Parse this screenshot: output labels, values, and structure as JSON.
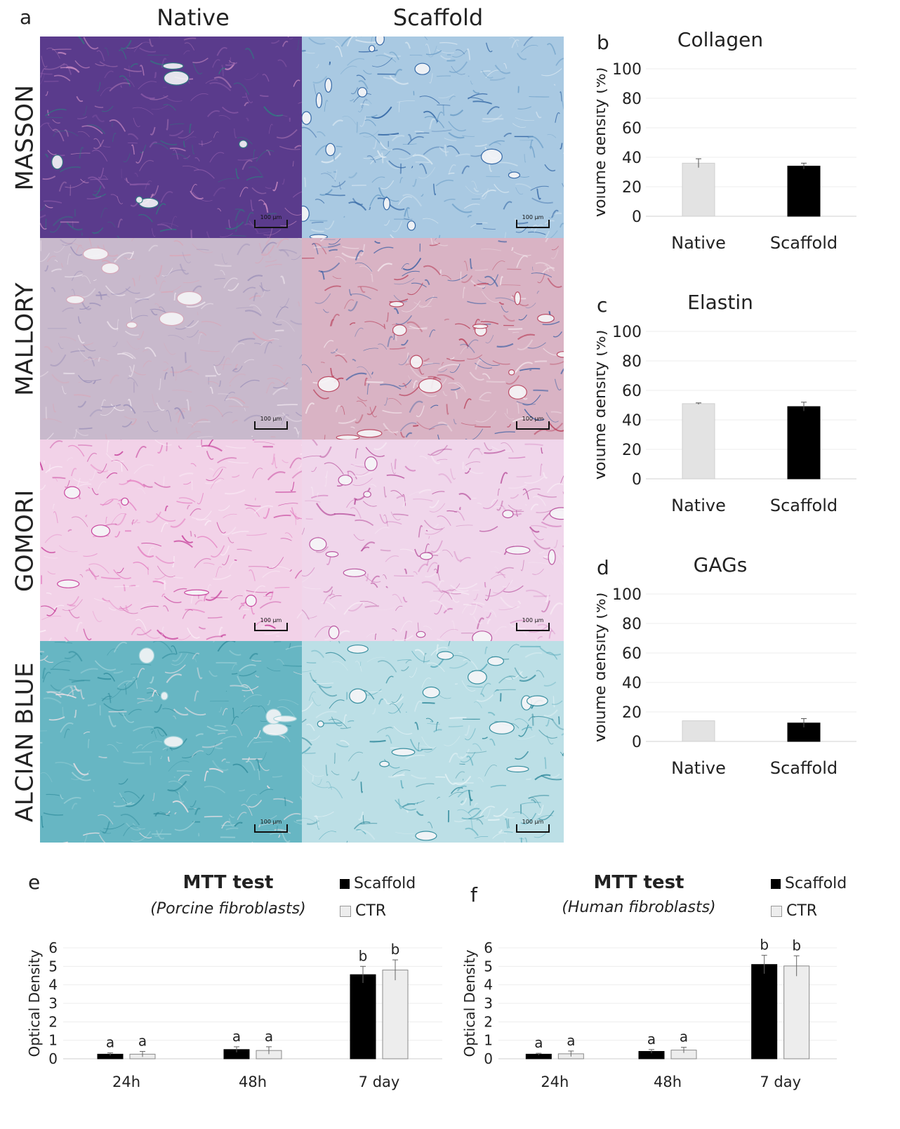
{
  "figure": {
    "panel_a": {
      "letter": "a",
      "columns": [
        "Native",
        "Scaffold"
      ],
      "rows": [
        "MASSON",
        "MALLORY",
        "GOMORI",
        "ALCIAN BLUE"
      ],
      "scale_bar_label": "100 µm",
      "stain_colors": {
        "MASSON_native": [
          "#5a3b8c",
          "#8a5aa8",
          "#2f7b80",
          "#c98bc2"
        ],
        "MASSON_scaffold": [
          "#a9c9e2",
          "#6d9fc8",
          "#2a5fa0",
          "#dce9f2"
        ],
        "MALLORY_native": [
          "#c8b9cc",
          "#9a8fb8",
          "#d8a7b8",
          "#efe6ee"
        ],
        "MALLORY_scaffold": [
          "#d9b3c4",
          "#3b5fa3",
          "#b9435d",
          "#f2e5eb"
        ],
        "GOMORI_native": [
          "#f2d2e8",
          "#e47fc2",
          "#c53a98",
          "#fbeef7"
        ],
        "GOMORI_scaffold": [
          "#f0d6eb",
          "#d586c2",
          "#b54a99",
          "#f7eaf4"
        ],
        "ALCIAN BLUE_native": [
          "#67b6c3",
          "#2f8b9b",
          "#a3d3da",
          "#f9e4e8"
        ],
        "ALCIAN BLUE_scaffold": [
          "#bcdfe6",
          "#5cadbd",
          "#2b8799",
          "#e5f3f6"
        ]
      }
    },
    "bar_colors": {
      "native": "#e3e3e3",
      "scaffold": "#000000",
      "ctr": "#ededed"
    }
  },
  "chart_data": [
    {
      "panel": "b",
      "type": "bar",
      "title": "Collagen",
      "ylabel": "Volume density (%)",
      "ylim": [
        0,
        100
      ],
      "yticks": [
        0,
        20,
        40,
        60,
        80,
        100
      ],
      "categories": [
        "Native",
        "Scaffold"
      ],
      "values": [
        36,
        34
      ],
      "errors": [
        3,
        2
      ],
      "colors": [
        "#e3e3e3",
        "#000000"
      ]
    },
    {
      "panel": "c",
      "type": "bar",
      "title": "Elastin",
      "ylabel": "Volume density (%)",
      "ylim": [
        0,
        100
      ],
      "yticks": [
        0,
        20,
        40,
        60,
        80,
        100
      ],
      "categories": [
        "Native",
        "Scaffold"
      ],
      "values": [
        51,
        49
      ],
      "errors": [
        0.5,
        3
      ],
      "colors": [
        "#e3e3e3",
        "#000000"
      ]
    },
    {
      "panel": "d",
      "type": "bar",
      "title": "GAGs",
      "ylabel": "Volume density (%)",
      "ylim": [
        0,
        100
      ],
      "yticks": [
        0,
        20,
        40,
        60,
        80,
        100
      ],
      "categories": [
        "Native",
        "Scaffold"
      ],
      "values": [
        14,
        12.5
      ],
      "errors": [
        0,
        3
      ],
      "colors": [
        "#e3e3e3",
        "#000000"
      ]
    },
    {
      "panel": "e",
      "type": "bar",
      "title": "MTT test",
      "subtitle": "(Porcine fibroblasts)",
      "ylabel": "Optical Density",
      "ylim": [
        0,
        6
      ],
      "yticks": [
        0,
        1,
        2,
        3,
        4,
        5,
        6
      ],
      "categories": [
        "24h",
        "48h",
        "7 day"
      ],
      "series": [
        {
          "name": "Scaffold",
          "values": [
            0.25,
            0.5,
            4.55
          ],
          "errors": [
            0.07,
            0.15,
            0.45
          ],
          "letters": [
            "a",
            "a",
            "b"
          ],
          "color": "#000000"
        },
        {
          "name": "CTR",
          "values": [
            0.25,
            0.45,
            4.8
          ],
          "errors": [
            0.15,
            0.2,
            0.55
          ],
          "letters": [
            "a",
            "a",
            "b"
          ],
          "color": "#ededed"
        }
      ]
    },
    {
      "panel": "f",
      "type": "bar",
      "title": "MTT test",
      "subtitle": "(Human fibroblasts)",
      "ylabel": "Optical Density",
      "ylim": [
        0,
        6
      ],
      "yticks": [
        0,
        1,
        2,
        3,
        4,
        5,
        6
      ],
      "categories": [
        "24h",
        "48h",
        "7 day"
      ],
      "series": [
        {
          "name": "Scaffold",
          "values": [
            0.25,
            0.4,
            5.1
          ],
          "errors": [
            0.05,
            0.1,
            0.5
          ],
          "letters": [
            "a",
            "a",
            "b"
          ],
          "color": "#000000"
        },
        {
          "name": "CTR",
          "values": [
            0.27,
            0.47,
            5.02
          ],
          "errors": [
            0.15,
            0.15,
            0.55
          ],
          "letters": [
            "a",
            "a",
            "b"
          ],
          "color": "#ededed"
        }
      ]
    }
  ]
}
